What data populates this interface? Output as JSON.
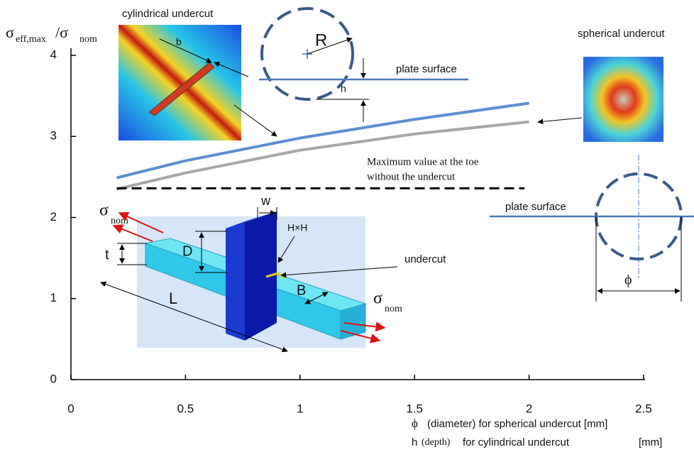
{
  "chart_data": {
    "type": "line",
    "y_label": {
      "main": "σ",
      "sub": "eff,max",
      "main2": "/σ",
      "sub2": "nom"
    },
    "x_label_lines": [
      {
        "symbol": "ϕ",
        "text": "(diameter) for spherical undercut [mm]"
      },
      {
        "symbol": "h",
        "note": "(depth)",
        "text": "for cylindrical undercut",
        "unit": "[mm]"
      }
    ],
    "x": [
      0.2,
      0.5,
      1.0,
      1.5,
      2.0
    ],
    "series": [
      {
        "color": "#5b8fd0",
        "values": [
          2.49,
          2.7,
          2.98,
          3.21,
          3.41
        ]
      },
      {
        "color": "#a6a6a6",
        "values": [
          2.35,
          2.55,
          2.83,
          3.03,
          3.18
        ]
      }
    ],
    "reference": {
      "value": 2.36,
      "x": [
        0.2,
        1.98
      ],
      "label_lines": [
        "Maximum value at the toe",
        "without the undercut"
      ]
    },
    "xlim": [
      0,
      2.5
    ],
    "ylim": [
      0,
      4
    ],
    "xticks": [
      0,
      0.5,
      1,
      1.5,
      2,
      2.5
    ],
    "yticks": [
      0,
      1,
      2,
      3,
      4
    ],
    "annotations": {
      "cylindrical": "cylindrical undercut",
      "spherical": "spherical undercut",
      "b": "b",
      "R": "R",
      "plate_surface": "plate surface",
      "h": "h",
      "sigma": "σ",
      "nom": "nom",
      "t": "t",
      "D": "D",
      "w": "w",
      "HxH": "H×H",
      "undercut": "undercut",
      "L": "L",
      "B": "B",
      "phi": "ϕ"
    }
  }
}
